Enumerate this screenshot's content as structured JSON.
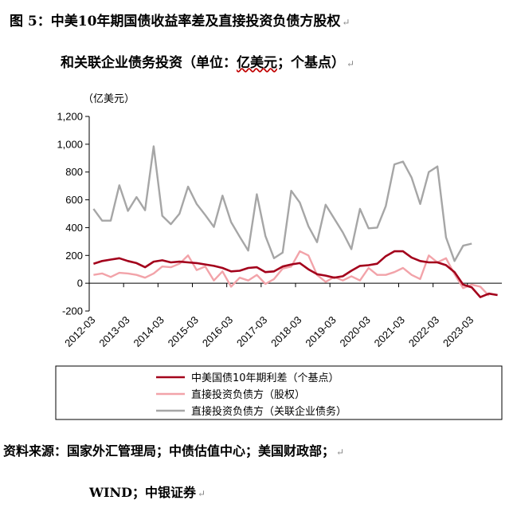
{
  "caption": {
    "line1": "图 5：中美10年期国债收益率差及直接投资负债方股权",
    "line2_prefix": "和关联企业债务投资（单位：",
    "line2_wavy": "亿美元",
    "line2_suffix": "；个基点）",
    "para_mark": "↵"
  },
  "source": {
    "line1": "资料来源：国家外汇管理局；中债估值中心；美国财政部；",
    "line2": "WIND；中银证券"
  },
  "colors": {
    "spread": "#a3001b",
    "equity": "#f2a3a9",
    "debt": "#a6a6a6",
    "axis": "#000000"
  },
  "chart_data": {
    "type": "line",
    "unit_label": "（亿美元）",
    "ylim": [
      -200,
      1200
    ],
    "yticks": [
      "1,200",
      "1,000",
      "800",
      "600",
      "400",
      "200",
      "0",
      "-200"
    ],
    "ytick_values": [
      1200,
      1000,
      800,
      600,
      400,
      200,
      0,
      -200
    ],
    "xtick_labels": [
      "2012-03",
      "2013-03",
      "2014-03",
      "2015-03",
      "2016-03",
      "2017-03",
      "2018-03",
      "2019-03",
      "2020-03",
      "2021-03",
      "2022-03",
      "2023-03"
    ],
    "grid": false,
    "legend_position": "bottom",
    "series": [
      {
        "name": "中美国债10年期利差（个基点）",
        "color_key": "spread",
        "values": [
          140,
          160,
          170,
          180,
          160,
          145,
          115,
          155,
          165,
          150,
          155,
          150,
          145,
          135,
          125,
          110,
          85,
          90,
          110,
          115,
          80,
          85,
          120,
          135,
          145,
          100,
          65,
          55,
          40,
          50,
          90,
          125,
          130,
          140,
          195,
          230,
          230,
          185,
          160,
          150,
          150,
          130,
          80,
          -10,
          -30,
          -100,
          -75,
          -85
        ]
      },
      {
        "name": "直接投资负债方（股权）",
        "color_key": "equity",
        "values": [
          60,
          70,
          45,
          75,
          70,
          60,
          40,
          70,
          120,
          115,
          140,
          200,
          95,
          120,
          20,
          85,
          -25,
          40,
          20,
          60,
          -5,
          30,
          105,
          120,
          230,
          200,
          60,
          10,
          45,
          20,
          50,
          20,
          110,
          60,
          60,
          80,
          110,
          60,
          30,
          200,
          150,
          180,
          65,
          -35,
          -10,
          -25,
          -90
        ]
      },
      {
        "name": "直接投资负债方（关联企业债务）",
        "color_key": "debt",
        "values": [
          535,
          450,
          450,
          705,
          520,
          620,
          525,
          985,
          485,
          425,
          500,
          695,
          570,
          490,
          405,
          630,
          440,
          335,
          235,
          640,
          340,
          180,
          220,
          665,
          580,
          410,
          295,
          565,
          465,
          365,
          245,
          535,
          395,
          400,
          555,
          855,
          875,
          760,
          570,
          800,
          840,
          330,
          160,
          270,
          285
        ]
      }
    ]
  }
}
